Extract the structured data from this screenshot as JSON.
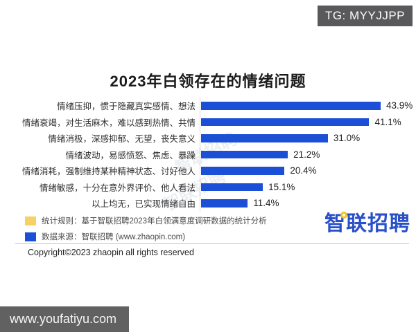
{
  "overlays": {
    "tg_badge": "TG: MYYJJPP",
    "site_badge": "www.youfatiyu.com"
  },
  "chart_data": {
    "type": "bar",
    "orientation": "horizontal",
    "title": "2023年白领存在的情绪问题",
    "categories": [
      "情绪压抑，惯于隐藏真实感情、想法",
      "情绪衰竭，对生活麻木，难以感到热情、共情",
      "情绪消极，深感抑郁、无望，丧失意义",
      "情绪波动，易感愤怒、焦虑、暴躁",
      "情绪消耗，强制维持某种精神状态、讨好他人",
      "情绪敏感，十分在意外界评价、他人看法",
      "以上均无，已实现情绪自由"
    ],
    "values": [
      43.9,
      41.1,
      31.0,
      21.2,
      20.4,
      15.1,
      11.4
    ],
    "value_labels": [
      "43.9%",
      "41.1%",
      "31.0%",
      "21.2%",
      "20.4%",
      "15.1%",
      "11.4%"
    ],
    "xlabel": "",
    "ylabel": "",
    "xlim": [
      0,
      45
    ],
    "grid": false,
    "legend_position": "none",
    "bar_color": "#1a4fd6"
  },
  "legend": {
    "items": [
      {
        "swatch_color": "#f6d264",
        "text": "统计规则：基于智联招聘2023年白领满意度调研数据的统计分析"
      },
      {
        "swatch_color": "#1a4fd6",
        "text": "数据来源：智联招聘 (www.zhaopin.com)"
      }
    ]
  },
  "footer": {
    "copyright": "Copyright©2023 zhaopin all rights reserved"
  },
  "logo": {
    "text": "智联招聘"
  },
  "watermark": {
    "text": "智联招聘"
  },
  "colors": {
    "bar_blue": "#1a4fd6",
    "legend_yellow": "#f6d264",
    "logo_blue": "#2950c8",
    "badge_gray": "#59595b",
    "axis_gray": "#d9d9d9"
  }
}
